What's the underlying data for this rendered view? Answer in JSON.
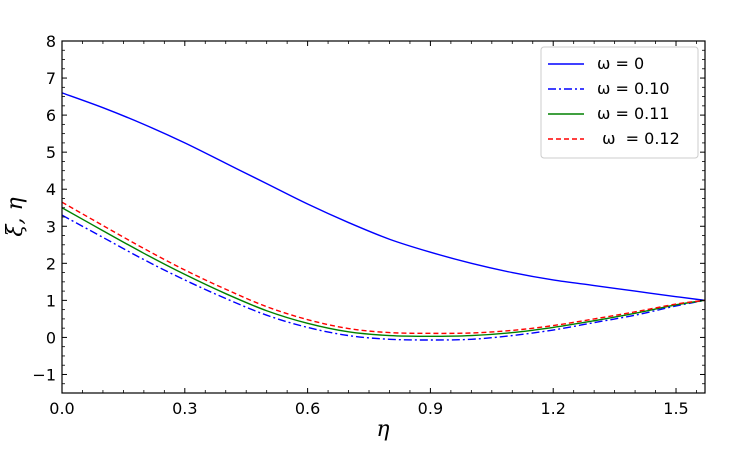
{
  "chart_data": {
    "type": "line",
    "xlabel": "η",
    "ylabel": "ξ, η",
    "xlim": [
      0,
      1.5708
    ],
    "ylim": [
      -1.5,
      8
    ],
    "xticks": [
      0.0,
      0.3,
      0.6,
      0.9,
      1.2,
      1.5
    ],
    "xtick_labels": [
      "0.0",
      "0.3",
      "0.6",
      "0.9",
      "1.2",
      "1.5"
    ],
    "yticks": [
      -1,
      0,
      1,
      2,
      3,
      4,
      5,
      6,
      7,
      8
    ],
    "ytick_labels": [
      "−1",
      "0",
      "1",
      "2",
      "3",
      "4",
      "5",
      "6",
      "7",
      "8"
    ],
    "grid": false,
    "legend_position": "top-right",
    "x": [
      0.0,
      0.1,
      0.2,
      0.3,
      0.4,
      0.5,
      0.6,
      0.7,
      0.8,
      0.9,
      1.0,
      1.1,
      1.2,
      1.3,
      1.4,
      1.5,
      1.5708
    ],
    "series": [
      {
        "name": "ω = 0",
        "color": "#0000ff",
        "dash": "solid",
        "values": [
          6.6,
          6.2,
          5.75,
          5.25,
          4.7,
          4.15,
          3.6,
          3.1,
          2.65,
          2.3,
          2.0,
          1.75,
          1.55,
          1.4,
          1.25,
          1.1,
          1.0
        ]
      },
      {
        "name": "ω = 0.10",
        "color": "#0000ff",
        "dash": "dashdot",
        "values": [
          3.3,
          2.7,
          2.1,
          1.55,
          1.05,
          0.6,
          0.27,
          0.05,
          -0.05,
          -0.07,
          -0.05,
          0.05,
          0.2,
          0.4,
          0.6,
          0.85,
          1.0
        ]
      },
      {
        "name": "ω = 0.11",
        "color": "#008000",
        "dash": "solid",
        "values": [
          3.5,
          2.88,
          2.27,
          1.7,
          1.18,
          0.72,
          0.38,
          0.15,
          0.05,
          0.03,
          0.05,
          0.13,
          0.27,
          0.45,
          0.65,
          0.88,
          1.0
        ]
      },
      {
        "name": " ω  = 0.12",
        "color": "#ff0000",
        "dash": "dashed",
        "values": [
          3.65,
          3.02,
          2.4,
          1.82,
          1.3,
          0.83,
          0.48,
          0.24,
          0.13,
          0.11,
          0.12,
          0.19,
          0.32,
          0.5,
          0.69,
          0.9,
          1.0
        ]
      }
    ]
  }
}
